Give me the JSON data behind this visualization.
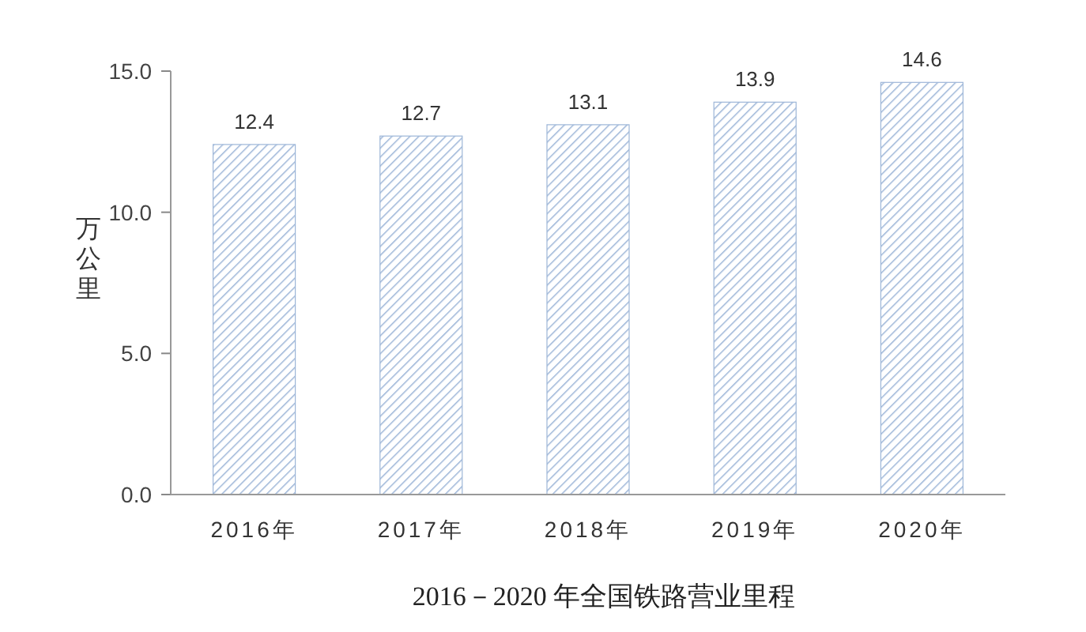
{
  "chart_data": {
    "type": "bar",
    "title": "2016－2020 年全国铁路营业里程",
    "ylabel": "万公里",
    "categories": [
      "2016年",
      "2017年",
      "2018年",
      "2019年",
      "2020年"
    ],
    "values": [
      12.4,
      12.7,
      13.1,
      13.9,
      14.6
    ],
    "color": "#9db6d8",
    "ylim": [
      0,
      15
    ],
    "yticks": [
      {
        "value": 0,
        "label": "0.0"
      },
      {
        "value": 5,
        "label": "5.0"
      },
      {
        "value": 10,
        "label": "10.0"
      },
      {
        "value": 15,
        "label": "15.0"
      }
    ],
    "data_labels": true,
    "grid": false
  }
}
